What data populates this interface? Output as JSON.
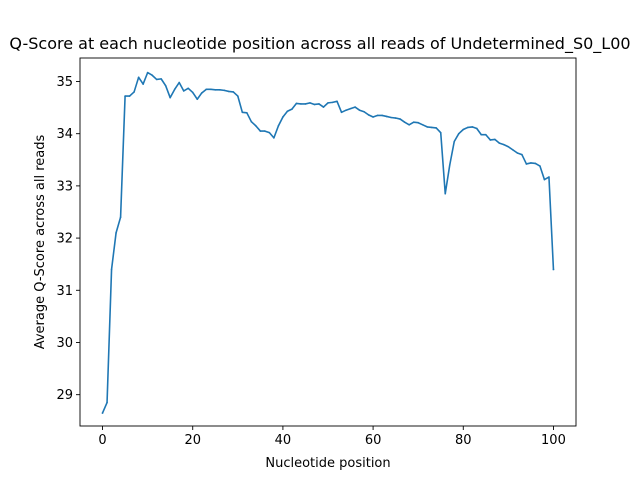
{
  "chart_data": {
    "type": "line",
    "title": "Q-Score at each nucleotide position across all reads of Undetermined_S0_L00",
    "xlabel": "Nucleotide position",
    "ylabel": "Average Q-Score across all reads",
    "xlim": [
      -5,
      105
    ],
    "ylim": [
      28.4,
      35.45
    ],
    "xticks": [
      0,
      20,
      40,
      60,
      80,
      100
    ],
    "yticks": [
      29,
      30,
      31,
      32,
      33,
      34,
      35
    ],
    "grid": false,
    "series": [
      {
        "color": "#1f77b4",
        "x": [
          0,
          1,
          2,
          3,
          4,
          5,
          6,
          7,
          8,
          9,
          10,
          11,
          12,
          13,
          14,
          15,
          16,
          17,
          18,
          19,
          20,
          21,
          22,
          23,
          24,
          25,
          26,
          27,
          28,
          29,
          30,
          31,
          32,
          33,
          34,
          35,
          36,
          37,
          38,
          39,
          40,
          41,
          42,
          43,
          44,
          45,
          46,
          47,
          48,
          49,
          50,
          51,
          52,
          53,
          54,
          55,
          56,
          57,
          58,
          59,
          60,
          61,
          62,
          63,
          64,
          65,
          66,
          67,
          68,
          69,
          70,
          71,
          72,
          73,
          74,
          75,
          76,
          77,
          78,
          79,
          80,
          81,
          82,
          83,
          84,
          85,
          86,
          87,
          88,
          89,
          90,
          91,
          92,
          93,
          94,
          95,
          96,
          97,
          98,
          99,
          100
        ],
        "y": [
          28.65,
          28.85,
          31.4,
          32.1,
          32.4,
          34.72,
          34.72,
          34.8,
          35.08,
          34.95,
          35.17,
          35.12,
          35.04,
          35.05,
          34.92,
          34.69,
          34.85,
          34.98,
          34.82,
          34.87,
          34.79,
          34.66,
          34.78,
          34.85,
          34.85,
          34.84,
          34.84,
          34.83,
          34.81,
          34.8,
          34.72,
          34.41,
          34.4,
          34.23,
          34.15,
          34.05,
          34.05,
          34.02,
          33.92,
          34.15,
          34.32,
          34.43,
          34.47,
          34.58,
          34.57,
          34.57,
          34.59,
          34.56,
          34.57,
          34.51,
          34.59,
          34.6,
          34.62,
          34.41,
          34.45,
          34.48,
          34.51,
          34.45,
          34.42,
          34.36,
          34.32,
          34.35,
          34.35,
          34.33,
          34.31,
          34.3,
          34.28,
          34.22,
          34.17,
          34.22,
          34.21,
          34.17,
          34.13,
          34.12,
          34.11,
          34.02,
          32.85,
          33.4,
          33.85,
          34.0,
          34.08,
          34.12,
          34.13,
          34.1,
          33.98,
          33.98,
          33.88,
          33.89,
          33.82,
          33.79,
          33.75,
          33.69,
          33.63,
          33.6,
          33.42,
          33.44,
          33.43,
          33.38,
          33.12,
          33.17,
          31.4
        ]
      }
    ]
  }
}
